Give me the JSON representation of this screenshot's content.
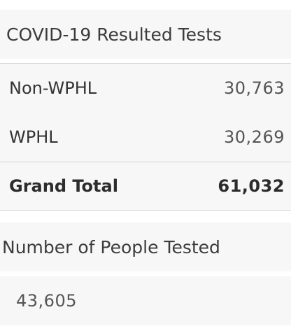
{
  "resulted_tests": {
    "title": "COVID-19 Resulted Tests",
    "rows": [
      {
        "label": "Non-WPHL",
        "value": "30,763"
      },
      {
        "label": "WPHL",
        "value": "30,269"
      }
    ],
    "total": {
      "label": "Grand Total",
      "value": "61,032"
    }
  },
  "people_tested": {
    "title": "Number of People Tested",
    "value": "43,605"
  },
  "colors": {
    "panel_background": "#f7f7f7",
    "divider": "#d4d4d4",
    "text": "#333333"
  }
}
